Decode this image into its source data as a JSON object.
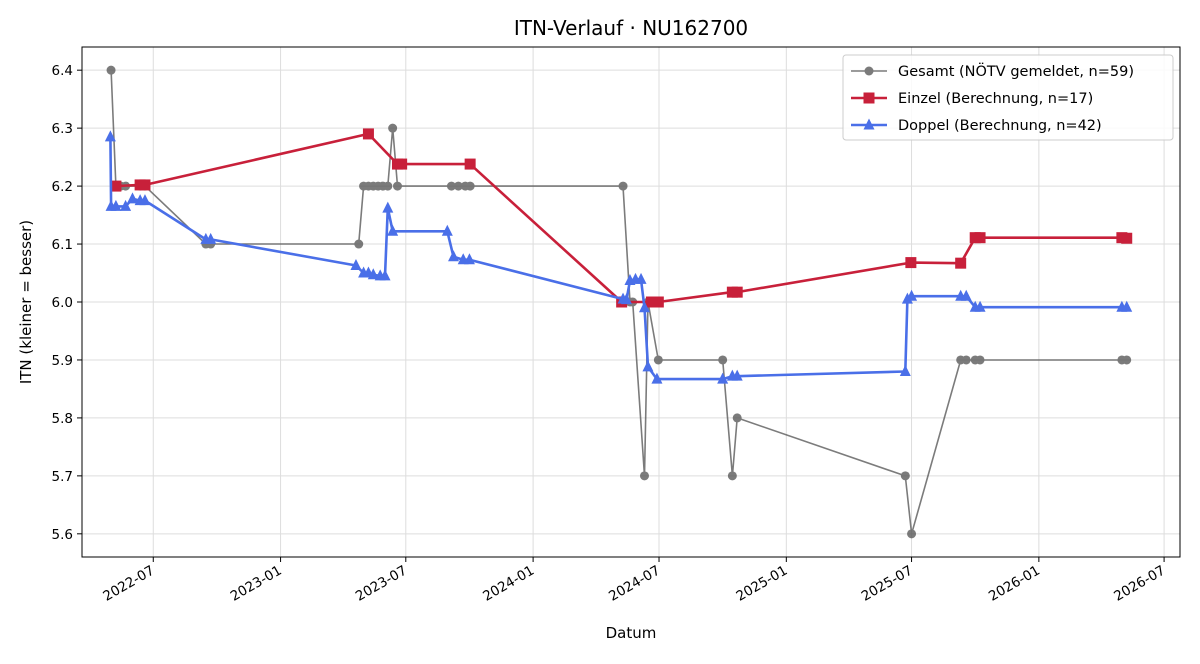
{
  "chart_data": {
    "type": "line",
    "title": "ITN-Verlauf · NU162700",
    "xlabel": "Datum",
    "ylabel": "ITN  (kleiner = besser)",
    "x_type": "date",
    "xlim": [
      "2022-03-20",
      "2026-07-24"
    ],
    "ylim": [
      5.56,
      6.44
    ],
    "x_ticks": [
      "2022-07-01",
      "2023-01-01",
      "2023-07-01",
      "2024-01-01",
      "2024-07-01",
      "2025-01-01",
      "2025-07-01",
      "2026-01-01",
      "2026-07-01"
    ],
    "x_tick_labels": [
      "2022-07",
      "2023-01",
      "2023-07",
      "2024-01",
      "2024-07",
      "2025-01",
      "2025-07",
      "2026-01",
      "2026-07"
    ],
    "y_ticks": [
      5.6,
      5.7,
      5.8,
      5.9,
      6.0,
      6.1,
      6.2,
      6.3,
      6.4
    ],
    "y_tick_labels": [
      "5.6",
      "5.7",
      "5.8",
      "5.9",
      "6.0",
      "6.1",
      "6.2",
      "6.3",
      "6.4"
    ],
    "grid": true,
    "legend_position": "top-right",
    "series": [
      {
        "name": "Gesamt (NÖTV gemeldet, n=59)",
        "color": "#505050",
        "marker": "circle",
        "points": [
          [
            "2022-05-01",
            6.4
          ],
          [
            "2022-05-08",
            6.2
          ],
          [
            "2022-05-15",
            6.2
          ],
          [
            "2022-05-22",
            6.2
          ],
          [
            "2022-06-12",
            6.2
          ],
          [
            "2022-06-19",
            6.2
          ],
          [
            "2022-09-15",
            6.1
          ],
          [
            "2022-09-22",
            6.1
          ],
          [
            "2023-04-24",
            6.1
          ],
          [
            "2023-05-01",
            6.2
          ],
          [
            "2023-05-08",
            6.2
          ],
          [
            "2023-05-15",
            6.2
          ],
          [
            "2023-05-22",
            6.2
          ],
          [
            "2023-05-29",
            6.2
          ],
          [
            "2023-06-05",
            6.2
          ],
          [
            "2023-06-12",
            6.3
          ],
          [
            "2023-06-19",
            6.2
          ],
          [
            "2023-09-05",
            6.2
          ],
          [
            "2023-09-15",
            6.2
          ],
          [
            "2023-09-25",
            6.2
          ],
          [
            "2023-10-02",
            6.2
          ],
          [
            "2024-05-10",
            6.2
          ],
          [
            "2024-05-20",
            6.0
          ],
          [
            "2024-05-24",
            6.0
          ],
          [
            "2024-06-10",
            5.7
          ],
          [
            "2024-06-15",
            6.0
          ],
          [
            "2024-06-30",
            5.9
          ],
          [
            "2024-10-01",
            5.9
          ],
          [
            "2024-10-15",
            5.7
          ],
          [
            "2024-10-22",
            5.8
          ],
          [
            "2025-06-22",
            5.7
          ],
          [
            "2025-07-01",
            5.6
          ],
          [
            "2025-09-10",
            5.9
          ],
          [
            "2025-09-18",
            5.9
          ],
          [
            "2025-10-01",
            5.9
          ],
          [
            "2025-10-08",
            5.9
          ],
          [
            "2026-05-01",
            5.9
          ],
          [
            "2026-05-08",
            5.9
          ]
        ]
      },
      {
        "name": "Einzel (Berechnung, n=17)",
        "color": "#c8203a",
        "marker": "square",
        "points": [
          [
            "2022-05-08",
            6.2
          ],
          [
            "2022-06-12",
            6.202
          ],
          [
            "2022-06-19",
            6.202
          ],
          [
            "2023-05-08",
            6.29
          ],
          [
            "2023-06-19",
            6.238
          ],
          [
            "2023-06-25",
            6.238
          ],
          [
            "2023-10-02",
            6.238
          ],
          [
            "2024-05-08",
            6.0
          ],
          [
            "2024-06-20",
            6.0
          ],
          [
            "2024-06-30",
            6.0
          ],
          [
            "2024-10-15",
            6.017
          ],
          [
            "2024-10-22",
            6.017
          ],
          [
            "2025-06-30",
            6.068
          ],
          [
            "2025-09-10",
            6.067
          ],
          [
            "2025-10-01",
            6.111
          ],
          [
            "2025-10-08",
            6.111
          ],
          [
            "2026-05-01",
            6.111
          ],
          [
            "2026-05-08",
            6.11
          ]
        ]
      },
      {
        "name": "Doppel (Berechnung, n=42)",
        "color": "#4a6fe8",
        "marker": "triangle",
        "points": [
          [
            "2022-04-30",
            6.285
          ],
          [
            "2022-05-01",
            6.165
          ],
          [
            "2022-05-08",
            6.165
          ],
          [
            "2022-05-22",
            6.165
          ],
          [
            "2022-06-01",
            6.178
          ],
          [
            "2022-06-12",
            6.175
          ],
          [
            "2022-06-19",
            6.175
          ],
          [
            "2022-09-15",
            6.108
          ],
          [
            "2022-09-22",
            6.108
          ],
          [
            "2023-04-20",
            6.063
          ],
          [
            "2023-05-01",
            6.05
          ],
          [
            "2023-05-08",
            6.05
          ],
          [
            "2023-05-15",
            6.047
          ],
          [
            "2023-05-25",
            6.045
          ],
          [
            "2023-06-01",
            6.045
          ],
          [
            "2023-06-05",
            6.162
          ],
          [
            "2023-06-12",
            6.122
          ],
          [
            "2023-08-30",
            6.122
          ],
          [
            "2023-09-08",
            6.078
          ],
          [
            "2023-09-22",
            6.073
          ],
          [
            "2023-10-01",
            6.073
          ],
          [
            "2024-05-10",
            6.005
          ],
          [
            "2024-05-15",
            6.004
          ],
          [
            "2024-05-20",
            6.037
          ],
          [
            "2024-05-28",
            6.039
          ],
          [
            "2024-06-05",
            6.039
          ],
          [
            "2024-06-10",
            5.99
          ],
          [
            "2024-06-15",
            5.888
          ],
          [
            "2024-06-28",
            5.867
          ],
          [
            "2024-10-01",
            5.867
          ],
          [
            "2024-10-15",
            5.872
          ],
          [
            "2024-10-22",
            5.872
          ],
          [
            "2025-06-22",
            5.88
          ],
          [
            "2025-06-25",
            6.005
          ],
          [
            "2025-07-01",
            6.01
          ],
          [
            "2025-09-10",
            6.01
          ],
          [
            "2025-09-18",
            6.01
          ],
          [
            "2025-10-01",
            5.991
          ],
          [
            "2025-10-08",
            5.991
          ],
          [
            "2026-05-01",
            5.991
          ],
          [
            "2026-05-08",
            5.991
          ]
        ]
      }
    ]
  }
}
